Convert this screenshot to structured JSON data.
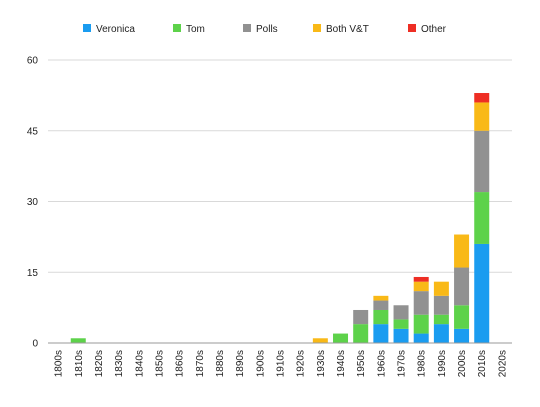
{
  "chart_data": {
    "type": "bar",
    "stacked": true,
    "categories": [
      "1800s",
      "1810s",
      "1820s",
      "1830s",
      "1840s",
      "1850s",
      "1860s",
      "1870s",
      "1880s",
      "1890s",
      "1900s",
      "1910s",
      "1920s",
      "1930s",
      "1940s",
      "1950s",
      "1960s",
      "1970s",
      "1980s",
      "1990s",
      "2000s",
      "2010s",
      "2020s"
    ],
    "series": [
      {
        "name": "Veronica",
        "color": "#1a9cf0",
        "values": [
          0,
          0,
          0,
          0,
          0,
          0,
          0,
          0,
          0,
          0,
          0,
          0,
          0,
          0,
          0,
          0,
          4,
          3,
          2,
          4,
          3,
          21,
          0
        ]
      },
      {
        "name": "Tom",
        "color": "#5dd24a",
        "values": [
          0,
          1,
          0,
          0,
          0,
          0,
          0,
          0,
          0,
          0,
          0,
          0,
          0,
          0,
          2,
          4,
          3,
          2,
          4,
          2,
          5,
          11,
          0
        ]
      },
      {
        "name": "Polls",
        "color": "#919191",
        "values": [
          0,
          0,
          0,
          0,
          0,
          0,
          0,
          0,
          0,
          0,
          0,
          0,
          0,
          0,
          0,
          3,
          2,
          3,
          5,
          4,
          8,
          13,
          0
        ]
      },
      {
        "name": "Both V&T",
        "color": "#f9b917",
        "values": [
          0,
          0,
          0,
          0,
          0,
          0,
          0,
          0,
          0,
          0,
          0,
          0,
          0,
          1,
          0,
          0,
          1,
          0,
          2,
          3,
          7,
          6,
          0
        ]
      },
      {
        "name": "Other",
        "color": "#ee2e24",
        "values": [
          0,
          0,
          0,
          0,
          0,
          0,
          0,
          0,
          0,
          0,
          0,
          0,
          0,
          0,
          0,
          0,
          0,
          0,
          1,
          0,
          0,
          2,
          0
        ]
      }
    ],
    "yticks": [
      "0",
      "15",
      "30",
      "45",
      "60"
    ],
    "ylim": [
      0,
      60
    ],
    "grid": true,
    "legend_position": "top"
  }
}
